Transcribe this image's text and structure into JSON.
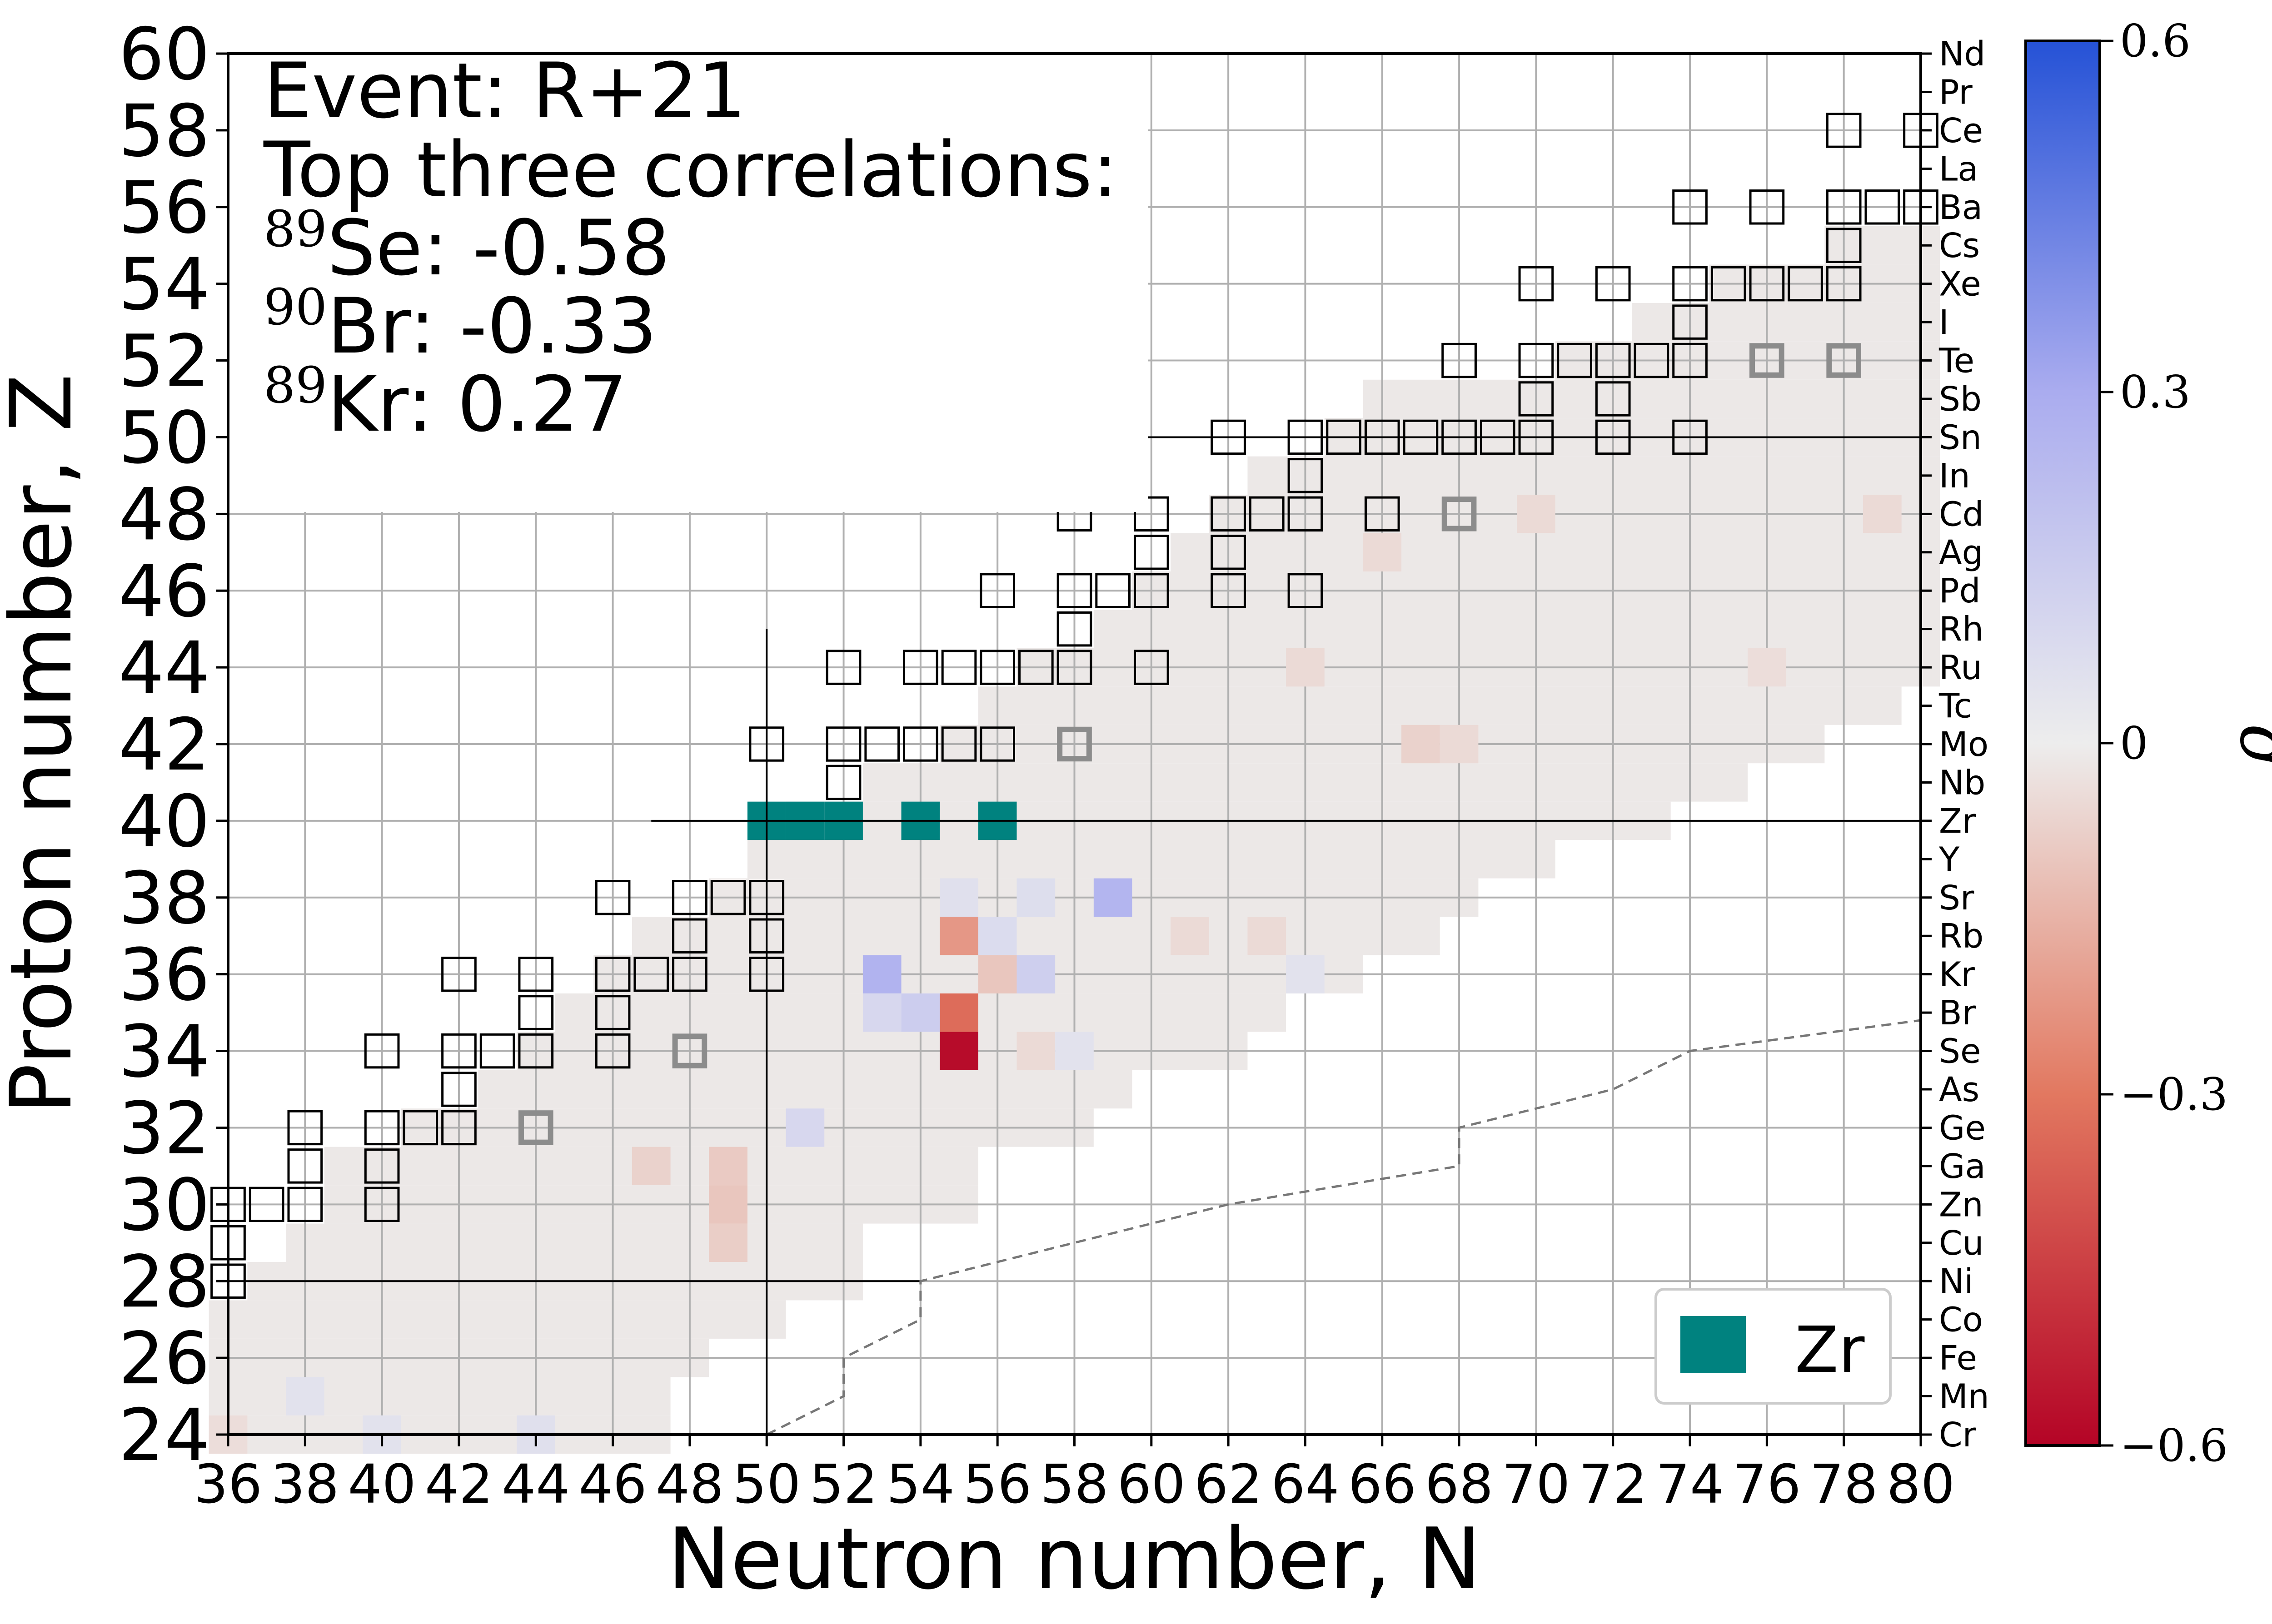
{
  "chart_data": {
    "type": "heatmap",
    "title": "",
    "xlabel": "Neutron number, N",
    "ylabel": "Proton number, Z",
    "xlim": [
      36,
      80
    ],
    "ylim": [
      24,
      60
    ],
    "x_ticks": [
      36,
      38,
      40,
      42,
      44,
      46,
      48,
      50,
      52,
      54,
      56,
      58,
      60,
      62,
      64,
      66,
      68,
      70,
      72,
      74,
      76,
      78,
      80
    ],
    "y_ticks": [
      24,
      26,
      28,
      30,
      32,
      34,
      36,
      38,
      40,
      42,
      44,
      46,
      48,
      50,
      52,
      54,
      56,
      58,
      60
    ],
    "element_axis": {
      "z": [
        24,
        25,
        26,
        27,
        28,
        29,
        30,
        31,
        32,
        33,
        34,
        35,
        36,
        37,
        38,
        39,
        40,
        41,
        42,
        43,
        44,
        45,
        46,
        47,
        48,
        49,
        50,
        51,
        52,
        53,
        54,
        55,
        56,
        57,
        58,
        59,
        60
      ],
      "labels": [
        "Cr",
        "Mn",
        "Fe",
        "Co",
        "Ni",
        "Cu",
        "Zn",
        "Ga",
        "Ge",
        "As",
        "Se",
        "Br",
        "Kr",
        "Rb",
        "Sr",
        "Y",
        "Zr",
        "Nb",
        "Mo",
        "Tc",
        "Ru",
        "Rh",
        "Pd",
        "Ag",
        "Cd",
        "In",
        "Sn",
        "Sb",
        "Te",
        "I",
        "Xe",
        "Cs",
        "Ba",
        "La",
        "Ce",
        "Pr",
        "Nd"
      ]
    },
    "colorbar": {
      "label": "ρ",
      "range": [
        -0.6,
        0.6
      ],
      "ticks": [
        -0.6,
        -0.3,
        0,
        0.3,
        0.6
      ],
      "tick_labels": [
        "−0.6",
        "−0.3",
        "0",
        "0.3",
        "0.6"
      ],
      "colormap": "coolwarm_r"
    },
    "annotation": {
      "line1": "Event: R+21",
      "line2": "Top three correlations:",
      "entries": [
        {
          "mass": "89",
          "element": "Se",
          "value": ": -0.58"
        },
        {
          "mass": "90",
          "element": "Br",
          "value": ": -0.33"
        },
        {
          "mass": "89",
          "element": "Kr",
          "value": ": 0.27"
        }
      ]
    },
    "legend": {
      "label": "Zr",
      "color": "#00827f",
      "position": "lower-right"
    },
    "magic_numbers": [
      28,
      50
    ],
    "region_rows": [
      {
        "z": 24,
        "n": [
          36,
          47
        ]
      },
      {
        "z": 25,
        "n": [
          36,
          47
        ]
      },
      {
        "z": 26,
        "n": [
          36,
          48
        ]
      },
      {
        "z": 27,
        "n": [
          36,
          50
        ]
      },
      {
        "z": 28,
        "n": [
          37,
          52
        ]
      },
      {
        "z": 29,
        "n": [
          38,
          52
        ]
      },
      {
        "z": 30,
        "n": [
          39,
          55
        ]
      },
      {
        "z": 31,
        "n": [
          39,
          55
        ]
      },
      {
        "z": 32,
        "n": [
          41,
          58
        ]
      },
      {
        "z": 33,
        "n": [
          43,
          59
        ]
      },
      {
        "z": 34,
        "n": [
          44,
          62
        ]
      },
      {
        "z": 35,
        "n": [
          45,
          63
        ]
      },
      {
        "z": 36,
        "n": [
          46,
          65
        ]
      },
      {
        "z": 37,
        "n": [
          47,
          67
        ]
      },
      {
        "z": 38,
        "n": [
          49,
          68
        ]
      },
      {
        "z": 39,
        "n": [
          50,
          70
        ]
      },
      {
        "z": 40,
        "n": [
          51,
          73
        ]
      },
      {
        "z": 41,
        "n": [
          53,
          75
        ]
      },
      {
        "z": 42,
        "n": [
          55,
          77
        ]
      },
      {
        "z": 43,
        "n": [
          56,
          79
        ]
      },
      {
        "z": 44,
        "n": [
          57,
          80
        ]
      },
      {
        "z": 45,
        "n": [
          59,
          80
        ]
      },
      {
        "z": 46,
        "n": [
          60,
          80
        ]
      },
      {
        "z": 47,
        "n": [
          61,
          80
        ]
      },
      {
        "z": 48,
        "n": [
          62,
          80
        ]
      },
      {
        "z": 49,
        "n": [
          63,
          80
        ]
      },
      {
        "z": 50,
        "n": [
          65,
          80
        ]
      },
      {
        "z": 51,
        "n": [
          66,
          80
        ]
      },
      {
        "z": 52,
        "n": [
          71,
          80
        ]
      },
      {
        "z": 53,
        "n": [
          73,
          80
        ]
      },
      {
        "z": 54,
        "n": [
          75,
          80
        ]
      },
      {
        "z": 55,
        "n": [
          78,
          80
        ]
      }
    ],
    "correlated_cells": [
      {
        "n": 55,
        "z": 34,
        "rho": -0.58
      },
      {
        "n": 55,
        "z": 35,
        "rho": -0.33
      },
      {
        "n": 53,
        "z": 36,
        "rho": 0.27
      },
      {
        "n": 59,
        "z": 38,
        "rho": 0.26
      },
      {
        "n": 55,
        "z": 37,
        "rho": -0.22
      },
      {
        "n": 54,
        "z": 35,
        "rho": 0.15
      },
      {
        "n": 53,
        "z": 35,
        "rho": 0.1
      },
      {
        "n": 57,
        "z": 36,
        "rho": 0.14
      },
      {
        "n": 56,
        "z": 36,
        "rho": -0.1
      },
      {
        "n": 56,
        "z": 37,
        "rho": 0.08
      },
      {
        "n": 57,
        "z": 38,
        "rho": 0.07
      },
      {
        "n": 55,
        "z": 38,
        "rho": 0.06
      },
      {
        "n": 51,
        "z": 32,
        "rho": 0.1
      },
      {
        "n": 49,
        "z": 30,
        "rho": -0.1
      },
      {
        "n": 49,
        "z": 31,
        "rho": -0.09
      },
      {
        "n": 49,
        "z": 29,
        "rho": -0.08
      },
      {
        "n": 47,
        "z": 31,
        "rho": -0.07
      },
      {
        "n": 57,
        "z": 34,
        "rho": -0.05
      },
      {
        "n": 58,
        "z": 34,
        "rho": 0.05
      },
      {
        "n": 67,
        "z": 42,
        "rho": -0.07
      },
      {
        "n": 68,
        "z": 42,
        "rho": -0.05
      },
      {
        "n": 61,
        "z": 37,
        "rho": -0.05
      },
      {
        "n": 63,
        "z": 37,
        "rho": -0.05
      },
      {
        "n": 64,
        "z": 36,
        "rho": 0.05
      },
      {
        "n": 44,
        "z": 24,
        "rho": 0.06
      },
      {
        "n": 40,
        "z": 24,
        "rho": 0.05
      },
      {
        "n": 38,
        "z": 25,
        "rho": 0.05
      },
      {
        "n": 36,
        "z": 24,
        "rho": -0.04
      },
      {
        "n": 70,
        "z": 48,
        "rho": -0.05
      },
      {
        "n": 79,
        "z": 48,
        "rho": -0.05
      },
      {
        "n": 66,
        "z": 47,
        "rho": -0.05
      },
      {
        "n": 76,
        "z": 44,
        "rho": -0.04
      },
      {
        "n": 64,
        "z": 44,
        "rho": -0.05
      }
    ],
    "stable_isotopes": [
      {
        "n": 36,
        "z": 28
      },
      {
        "n": 36,
        "z": 29
      },
      {
        "n": 36,
        "z": 30
      },
      {
        "n": 37,
        "z": 30
      },
      {
        "n": 38,
        "z": 30
      },
      {
        "n": 38,
        "z": 31
      },
      {
        "n": 38,
        "z": 32
      },
      {
        "n": 40,
        "z": 30
      },
      {
        "n": 40,
        "z": 31
      },
      {
        "n": 40,
        "z": 32
      },
      {
        "n": 41,
        "z": 32
      },
      {
        "n": 42,
        "z": 32
      },
      {
        "n": 42,
        "z": 33
      },
      {
        "n": 42,
        "z": 34
      },
      {
        "n": 42,
        "z": 36
      },
      {
        "n": 43,
        "z": 34
      },
      {
        "n": 44,
        "z": 34
      },
      {
        "n": 44,
        "z": 35
      },
      {
        "n": 44,
        "z": 36
      },
      {
        "n": 40,
        "z": 34
      },
      {
        "n": 46,
        "z": 34
      },
      {
        "n": 46,
        "z": 35
      },
      {
        "n": 46,
        "z": 36
      },
      {
        "n": 46,
        "z": 38
      },
      {
        "n": 47,
        "z": 36
      },
      {
        "n": 48,
        "z": 36
      },
      {
        "n": 48,
        "z": 37
      },
      {
        "n": 48,
        "z": 38
      },
      {
        "n": 49,
        "z": 38
      },
      {
        "n": 50,
        "z": 36
      },
      {
        "n": 50,
        "z": 37
      },
      {
        "n": 50,
        "z": 38
      },
      {
        "n": 50,
        "z": 42
      },
      {
        "n": 52,
        "z": 41
      },
      {
        "n": 52,
        "z": 42
      },
      {
        "n": 52,
        "z": 44
      },
      {
        "n": 53,
        "z": 42
      },
      {
        "n": 54,
        "z": 42
      },
      {
        "n": 54,
        "z": 44
      },
      {
        "n": 55,
        "z": 42
      },
      {
        "n": 55,
        "z": 44
      },
      {
        "n": 56,
        "z": 42
      },
      {
        "n": 56,
        "z": 44
      },
      {
        "n": 56,
        "z": 46
      },
      {
        "n": 57,
        "z": 44
      },
      {
        "n": 58,
        "z": 44
      },
      {
        "n": 58,
        "z": 45
      },
      {
        "n": 58,
        "z": 46
      },
      {
        "n": 58,
        "z": 48
      },
      {
        "n": 59,
        "z": 46
      },
      {
        "n": 60,
        "z": 44
      },
      {
        "n": 60,
        "z": 46
      },
      {
        "n": 60,
        "z": 47
      },
      {
        "n": 60,
        "z": 48
      },
      {
        "n": 62,
        "z": 46
      },
      {
        "n": 62,
        "z": 47
      },
      {
        "n": 62,
        "z": 48
      },
      {
        "n": 62,
        "z": 50
      },
      {
        "n": 63,
        "z": 48
      },
      {
        "n": 64,
        "z": 46
      },
      {
        "n": 64,
        "z": 48
      },
      {
        "n": 64,
        "z": 49
      },
      {
        "n": 64,
        "z": 50
      },
      {
        "n": 65,
        "z": 50
      },
      {
        "n": 66,
        "z": 48
      },
      {
        "n": 66,
        "z": 50
      },
      {
        "n": 67,
        "z": 50
      },
      {
        "n": 68,
        "z": 50
      },
      {
        "n": 68,
        "z": 52
      },
      {
        "n": 69,
        "z": 50
      },
      {
        "n": 70,
        "z": 50
      },
      {
        "n": 70,
        "z": 51
      },
      {
        "n": 70,
        "z": 52
      },
      {
        "n": 70,
        "z": 54
      },
      {
        "n": 71,
        "z": 52
      },
      {
        "n": 72,
        "z": 50
      },
      {
        "n": 72,
        "z": 51
      },
      {
        "n": 72,
        "z": 52
      },
      {
        "n": 72,
        "z": 54
      },
      {
        "n": 73,
        "z": 52
      },
      {
        "n": 74,
        "z": 50
      },
      {
        "n": 74,
        "z": 52
      },
      {
        "n": 74,
        "z": 53
      },
      {
        "n": 74,
        "z": 54
      },
      {
        "n": 74,
        "z": 56
      },
      {
        "n": 75,
        "z": 54
      },
      {
        "n": 76,
        "z": 54
      },
      {
        "n": 76,
        "z": 56
      },
      {
        "n": 77,
        "z": 54
      },
      {
        "n": 78,
        "z": 54
      },
      {
        "n": 78,
        "z": 55
      },
      {
        "n": 78,
        "z": 56
      },
      {
        "n": 78,
        "z": 58
      },
      {
        "n": 79,
        "z": 56
      },
      {
        "n": 80,
        "z": 56
      },
      {
        "n": 80,
        "z": 58
      }
    ],
    "long_lived_isotopes": [
      {
        "n": 44,
        "z": 32
      },
      {
        "n": 48,
        "z": 34
      },
      {
        "n": 58,
        "z": 42
      },
      {
        "n": 68,
        "z": 48
      },
      {
        "n": 76,
        "z": 52
      },
      {
        "n": 78,
        "z": 52
      }
    ],
    "zr_cells": [
      {
        "n": 50,
        "z": 40
      },
      {
        "n": 51,
        "z": 40
      },
      {
        "n": 52,
        "z": 40
      },
      {
        "n": 54,
        "z": 40
      },
      {
        "n": 56,
        "z": 40
      }
    ],
    "dashed_line": {
      "points": [
        [
          50,
          24
        ],
        [
          52,
          25
        ],
        [
          52,
          26
        ],
        [
          54,
          27
        ],
        [
          54,
          28
        ],
        [
          60,
          29.5
        ],
        [
          62,
          30
        ],
        [
          68,
          31
        ],
        [
          68,
          32
        ],
        [
          72,
          33
        ],
        [
          74,
          34
        ],
        [
          80,
          34.8
        ]
      ]
    },
    "n_magic_line": {
      "n": 50,
      "z_range": [
        24,
        45
      ]
    },
    "z50_line": {
      "n_range": [
        53,
        80
      ]
    },
    "z40_line": {
      "n_range": [
        47,
        80
      ]
    },
    "z28_line": {
      "n_range": [
        36,
        54
      ]
    }
  }
}
